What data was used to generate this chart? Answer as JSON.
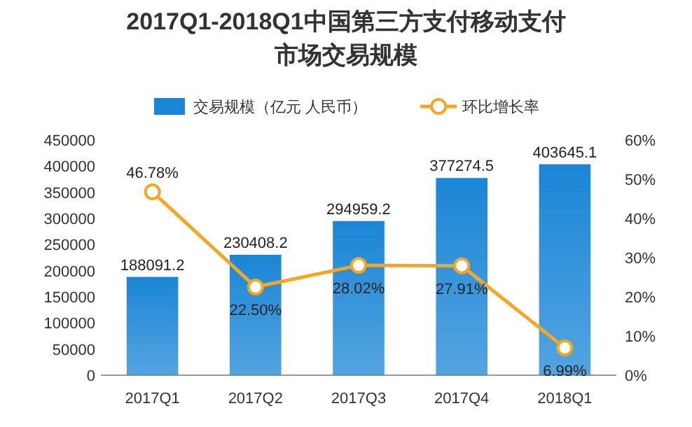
{
  "chart_data": {
    "type": "bar",
    "title": "2017Q1-2018Q1中国第三方支付移动支付市场交易规模",
    "categories": [
      "2017Q1",
      "2017Q2",
      "2017Q3",
      "2017Q4",
      "2018Q1"
    ],
    "series": [
      {
        "name": "交易规模（亿元 人民币）",
        "color": "#1a86d6",
        "values": [
          188091.2,
          230408.2,
          294959.2,
          377274.5,
          403645.1
        ],
        "value_labels": [
          "188091.2",
          "230408.2",
          "294959.2",
          "377274.5",
          "403645.1"
        ]
      },
      {
        "name": "环比增长率",
        "type": "line",
        "axis": "y2",
        "color": "#f5a623",
        "marker": "circle",
        "values": [
          46.78,
          22.5,
          28.02,
          27.91,
          6.99
        ],
        "value_labels": [
          "46.78%",
          "22.50%",
          "28.02%",
          "27.91%",
          "6.99%"
        ]
      }
    ],
    "ylim": [
      0,
      450000
    ],
    "yticks": [
      0,
      50000,
      100000,
      150000,
      200000,
      250000,
      300000,
      350000,
      400000,
      450000
    ],
    "y2lim": [
      0,
      60
    ],
    "y2ticks": [
      {
        "value": 0,
        "label": "0%"
      },
      {
        "value": 10,
        "label": "10%"
      },
      {
        "value": 20,
        "label": "20%"
      },
      {
        "value": 30,
        "label": "30%"
      },
      {
        "value": 40,
        "label": "40%"
      },
      {
        "value": 50,
        "label": "50%"
      },
      {
        "value": 60,
        "label": "60%"
      }
    ],
    "legend": "top"
  }
}
